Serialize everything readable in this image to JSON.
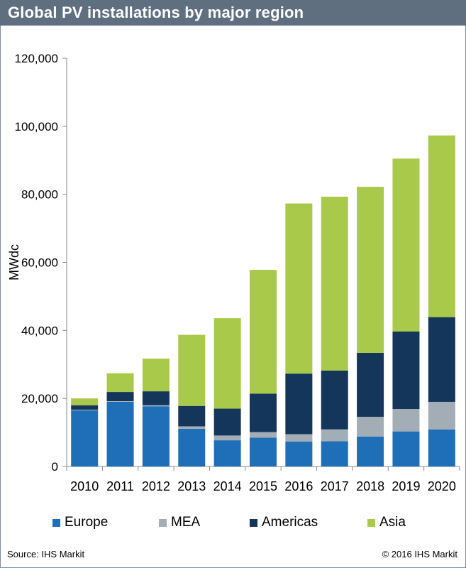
{
  "title": "Global PV installations by major region",
  "footer": {
    "source": "Source: IHS Markit",
    "copyright": "© 2016 IHS Markit"
  },
  "colors": {
    "title_bar": "#5f6f80",
    "Europe": "#1f6fb8",
    "MEA": "#a2adb6",
    "Americas": "#14365a",
    "Asia": "#a9c94a",
    "axis": "#8a8a8a"
  },
  "chart_data": {
    "type": "bar",
    "stacked": true,
    "title": "Global PV installations by major region",
    "xlabel": "",
    "ylabel": "MWdc",
    "ylim": [
      0,
      120000
    ],
    "y_ticks": [
      0,
      20000,
      40000,
      60000,
      80000,
      100000,
      120000
    ],
    "y_tick_labels": [
      "0",
      "20,000",
      "40,000",
      "60,000",
      "80,000",
      "100,000",
      "120,000"
    ],
    "grid": false,
    "legend_position": "bottom",
    "categories": [
      "2010",
      "2011",
      "2012",
      "2013",
      "2014",
      "2015",
      "2016",
      "2017",
      "2018",
      "2019",
      "2020"
    ],
    "series": [
      {
        "name": "Europe",
        "color": "#1f6fb8",
        "values": [
          16500,
          19000,
          17700,
          11100,
          7700,
          8500,
          7300,
          7400,
          8800,
          10300,
          10900
        ]
      },
      {
        "name": "MEA",
        "color": "#a2adb6",
        "values": [
          200,
          200,
          300,
          700,
          1400,
          1600,
          2200,
          3500,
          5800,
          6600,
          8100
        ]
      },
      {
        "name": "Americas",
        "color": "#14365a",
        "values": [
          1300,
          2700,
          4100,
          6000,
          7900,
          11300,
          17800,
          17300,
          18800,
          22800,
          24900
        ]
      },
      {
        "name": "Asia",
        "color": "#a9c94a",
        "values": [
          2000,
          5500,
          9600,
          20900,
          26600,
          36400,
          50000,
          51100,
          48800,
          50800,
          53400
        ]
      }
    ]
  }
}
